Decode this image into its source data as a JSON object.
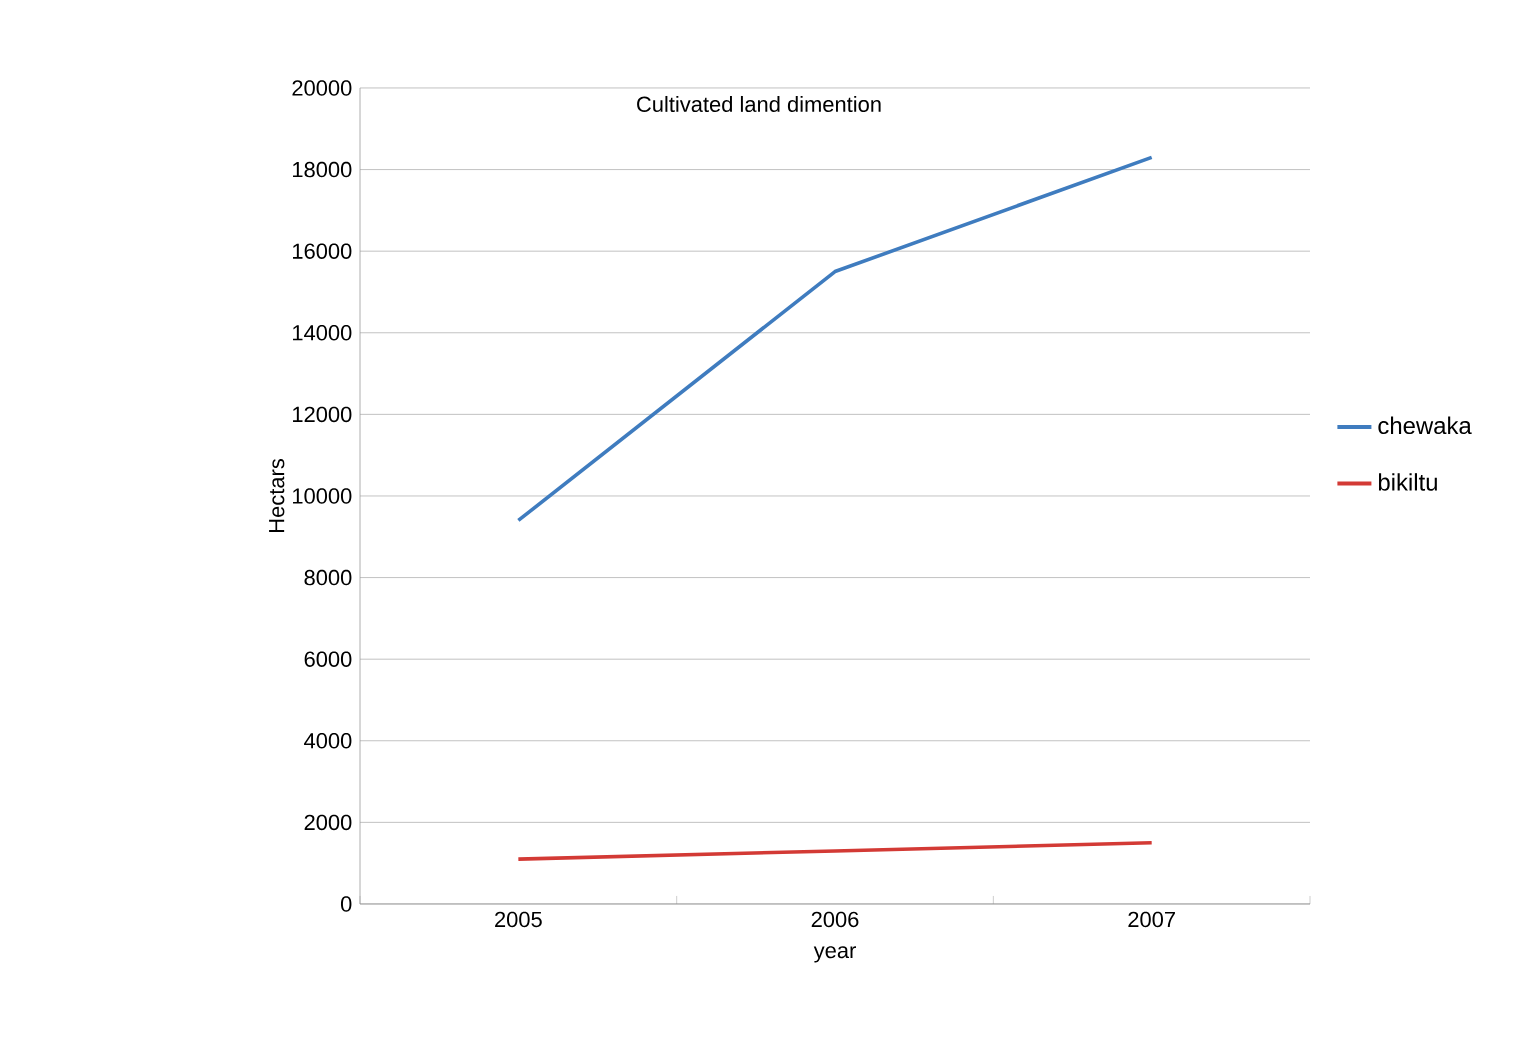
{
  "chart_data": {
    "type": "line",
    "title": "Cultivated land dimention",
    "xlabel": "year",
    "ylabel": "Hectars",
    "categories": [
      "2005",
      "2006",
      "2007"
    ],
    "series": [
      {
        "name": "chewaka",
        "color": "#3f7cbf",
        "values": [
          9400,
          15500,
          18300
        ]
      },
      {
        "name": "bikiltu",
        "color": "#d33a35",
        "values": [
          1100,
          1300,
          1500
        ]
      }
    ],
    "ylim": [
      0,
      20000
    ],
    "yticks": [
      0,
      2000,
      4000,
      6000,
      8000,
      10000,
      12000,
      14000,
      16000,
      18000,
      20000
    ],
    "grid": "y",
    "legend": "right",
    "marker": "none",
    "line_style": "solid"
  }
}
